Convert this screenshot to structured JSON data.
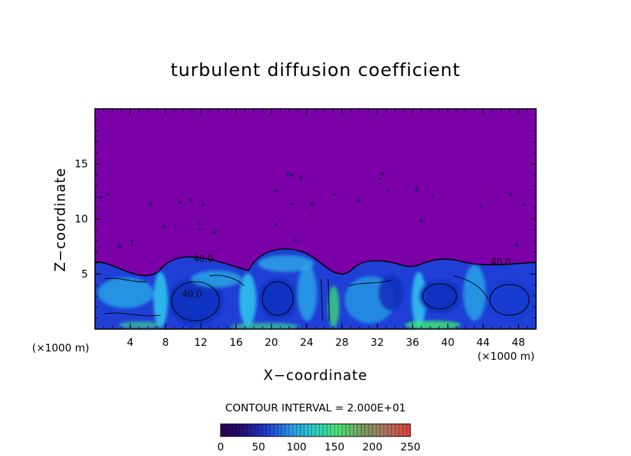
{
  "chart_data": {
    "type": "heatmap",
    "title": "turbulent diffusion coefficient",
    "xlabel": "X−coordinate",
    "ylabel": "Z−coordinate",
    "x_unit_left": "(×1000 m)",
    "x_unit_right": "(×1000 m)",
    "xlim": [
      0,
      50
    ],
    "ylim": [
      0,
      20
    ],
    "x_ticks": [
      4,
      8,
      12,
      16,
      20,
      24,
      28,
      32,
      36,
      40,
      44,
      48
    ],
    "y_ticks": [
      5,
      10,
      15
    ],
    "contour_interval_text": "CONTOUR INTERVAL = 2.000E+01",
    "contour_labels": [
      {
        "text": "40.0",
        "x": 12.3,
        "z": 6.1
      },
      {
        "text": "40.0",
        "x": 11.0,
        "z": 2.9
      },
      {
        "text": "40.0",
        "x": 46.0,
        "z": 5.8
      }
    ],
    "colorbar": {
      "min": 0,
      "max": 250,
      "ticks": [
        0,
        50,
        100,
        150,
        200,
        250
      ],
      "tick_labels": [
        "0",
        "50",
        "100",
        "150",
        "200",
        "250"
      ]
    },
    "field_description_values": {
      "background_value": 0,
      "turbulent_layer_top_z": 6.0
    },
    "colors": {
      "background": "#7b00a8",
      "low": "#1e3acf",
      "mid": "#25a8e6",
      "high": "#3df06a"
    }
  }
}
